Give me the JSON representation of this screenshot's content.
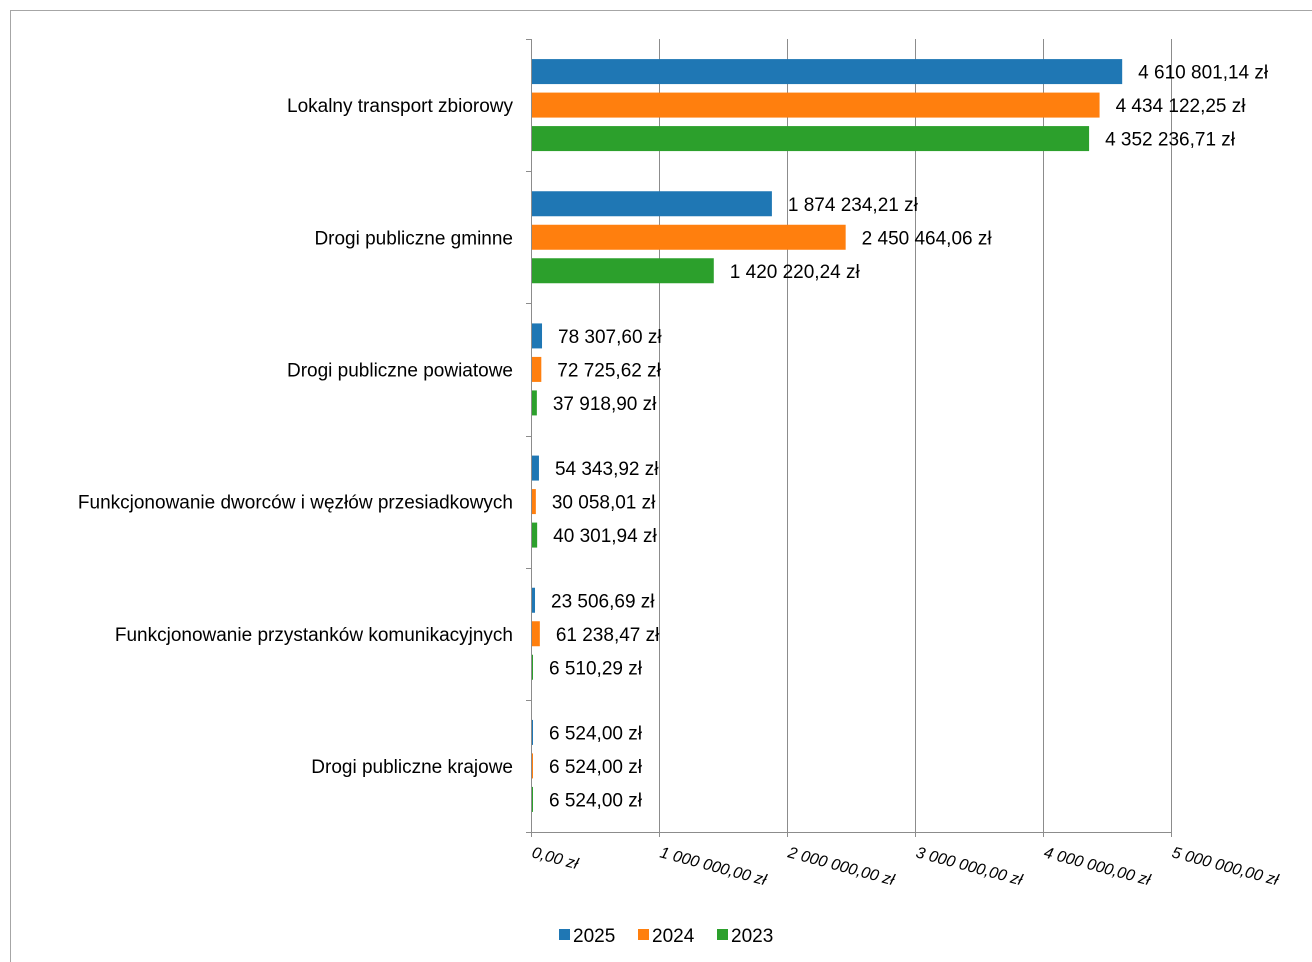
{
  "chart_data": {
    "type": "bar",
    "orientation": "horizontal",
    "categories": [
      "Lokalny transport zbiorowy",
      "Drogi publiczne gminne",
      "Drogi publiczne powiatowe",
      "Funkcjonowanie dworców i węzłów przesiadkowych",
      "Funkcjonowanie przystanków komunikacyjnych",
      "Drogi publiczne krajowe"
    ],
    "series": [
      {
        "name": "2025",
        "color": "#1f77b4",
        "values": [
          4610801.14,
          1874234.21,
          78307.6,
          54343.92,
          23506.69,
          6524.0
        ],
        "labels": [
          "4 610 801,14 zł",
          "1 874 234,21 zł",
          "78 307,60 zł",
          "54 343,92 zł",
          "23 506,69 zł",
          "6 524,00 zł"
        ]
      },
      {
        "name": "2024",
        "color": "#ff7f0e",
        "values": [
          4434122.25,
          2450464.06,
          72725.62,
          30058.01,
          61238.47,
          6524.0
        ],
        "labels": [
          "4 434 122,25 zł",
          "2 450 464,06 zł",
          "72 725,62 zł",
          "30 058,01 zł",
          "61 238,47 zł",
          "6 524,00 zł"
        ]
      },
      {
        "name": "2023",
        "color": "#2ca02c",
        "values": [
          4352236.71,
          1420220.24,
          37918.9,
          40301.94,
          6510.29,
          6524.0
        ],
        "labels": [
          "4 352 236,71 zł",
          "1 420 220,24 zł",
          "37 918,90 zł",
          "40 301,94 zł",
          "6 510,29 zł",
          "6 524,00 zł"
        ]
      }
    ],
    "x_ticks": [
      0,
      1000000,
      2000000,
      3000000,
      4000000,
      5000000
    ],
    "x_tick_labels": [
      "0,00 zł",
      "1 000 000,00 zł",
      "2 000 000,00 zł",
      "3 000 000,00 zł",
      "4 000 000,00 zł",
      "5 000 000,00 zł"
    ],
    "xlim": [
      0,
      5000000
    ],
    "grid": true,
    "legend_position": "bottom",
    "title": "",
    "xlabel": "",
    "ylabel": ""
  }
}
